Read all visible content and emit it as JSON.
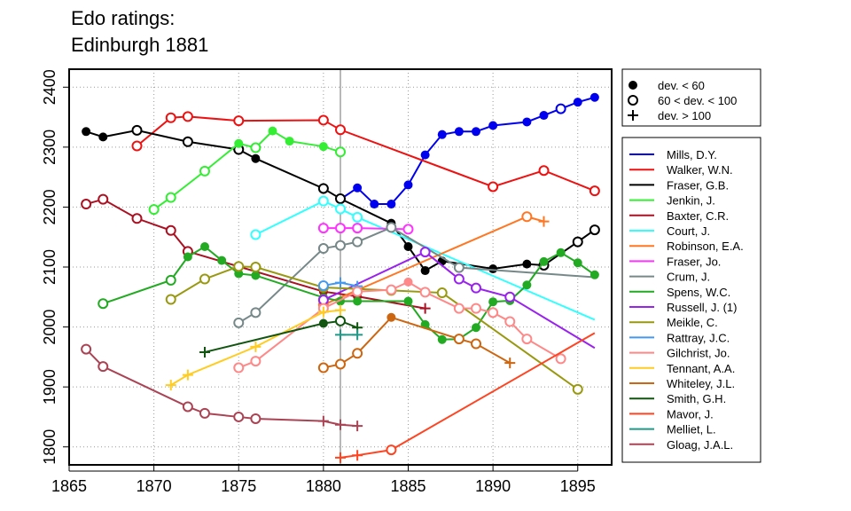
{
  "chart_data": {
    "type": "line",
    "title_lines": [
      "Edo ratings:",
      "Edinburgh 1881"
    ],
    "xlabel": "",
    "ylabel": "",
    "xlim": [
      1865,
      1897
    ],
    "ylim": [
      1770,
      2430
    ],
    "x_ticks": [
      1865,
      1870,
      1875,
      1880,
      1885,
      1890,
      1895
    ],
    "y_ticks": [
      1800,
      1900,
      2000,
      2100,
      2200,
      2300,
      2400
    ],
    "grid": "dotted",
    "vertical_marker_x": 1881,
    "marker_legend": [
      {
        "symbol": "filled-circle",
        "label": "dev. < 60"
      },
      {
        "symbol": "open-circle",
        "label": "60 < dev. < 100"
      },
      {
        "symbol": "plus",
        "label": "dev. > 100"
      }
    ],
    "series": [
      {
        "name": "Mills, D.Y.",
        "color": "#0000ee",
        "points": [
          [
            1881,
            2213,
            "f"
          ],
          [
            1882,
            2232,
            "f"
          ],
          [
            1883,
            2205,
            "f"
          ],
          [
            1884,
            2205,
            "f"
          ],
          [
            1885,
            2237,
            "f"
          ],
          [
            1886,
            2287,
            "f"
          ],
          [
            1887,
            2321,
            "f"
          ],
          [
            1888,
            2326,
            "f"
          ],
          [
            1889,
            2326,
            "f"
          ],
          [
            1890,
            2336,
            "f"
          ],
          [
            1892,
            2342,
            "f"
          ],
          [
            1893,
            2353,
            "f"
          ],
          [
            1894,
            2364,
            "o"
          ],
          [
            1895,
            2375,
            "f"
          ],
          [
            1896,
            2383,
            "f"
          ]
        ]
      },
      {
        "name": "Walker, W.N.",
        "color": "#ee1111",
        "points": [
          [
            1869,
            2302,
            "o"
          ],
          [
            1871,
            2349,
            "o"
          ],
          [
            1872,
            2351,
            "o"
          ],
          [
            1875,
            2344,
            "o"
          ],
          [
            1880,
            2345,
            "o"
          ],
          [
            1881,
            2329,
            "o"
          ],
          [
            1890,
            2234,
            "o"
          ],
          [
            1893,
            2261,
            "o"
          ],
          [
            1896,
            2227,
            "o"
          ]
        ]
      },
      {
        "name": "Fraser, G.B.",
        "color": "#000000",
        "points": [
          [
            1866,
            2326,
            "f"
          ],
          [
            1867,
            2317,
            "f"
          ],
          [
            1869,
            2328,
            "o"
          ],
          [
            1872,
            2309,
            "o"
          ],
          [
            1875,
            2296,
            "o"
          ],
          [
            1876,
            2281,
            "f"
          ],
          [
            1880,
            2231,
            "o"
          ],
          [
            1881,
            2214,
            "o"
          ],
          [
            1884,
            2173,
            "f"
          ],
          [
            1885,
            2134,
            "f"
          ],
          [
            1886,
            2094,
            "f"
          ],
          [
            1887,
            2110,
            "f"
          ],
          [
            1890,
            2097,
            "f"
          ],
          [
            1892,
            2105,
            "f"
          ],
          [
            1893,
            2103,
            "o"
          ],
          [
            1895,
            2142,
            "o"
          ],
          [
            1896,
            2162,
            "o"
          ]
        ]
      },
      {
        "name": "Jenkin, J.",
        "color": "#33ee33",
        "points": [
          [
            1870,
            2196,
            "o"
          ],
          [
            1871,
            2216,
            "o"
          ],
          [
            1873,
            2260,
            "o"
          ],
          [
            1875,
            2306,
            "f"
          ],
          [
            1876,
            2299,
            "o"
          ],
          [
            1877,
            2327,
            "f"
          ],
          [
            1878,
            2310,
            "f"
          ],
          [
            1880,
            2301,
            "f"
          ],
          [
            1881,
            2292,
            "o"
          ]
        ]
      },
      {
        "name": "Baxter, C.R.",
        "color": "#aa1122",
        "points": [
          [
            1866,
            2205,
            "o"
          ],
          [
            1867,
            2213,
            "o"
          ],
          [
            1869,
            2181,
            "o"
          ],
          [
            1871,
            2161,
            "o"
          ],
          [
            1872,
            2126,
            "o"
          ],
          [
            1880,
            2059,
            "f"
          ],
          [
            1882,
            2051,
            "f"
          ],
          [
            1886,
            2031,
            "+"
          ]
        ]
      },
      {
        "name": "Court, J.",
        "color": "#33ffff",
        "points": [
          [
            1876,
            2154,
            "o"
          ],
          [
            1880,
            2210,
            "o"
          ],
          [
            1881,
            2197,
            "o"
          ],
          [
            1882,
            2183,
            "o"
          ],
          [
            1896,
            2012,
            "none"
          ]
        ]
      },
      {
        "name": "Robinson, E.A.",
        "color": "#ff7722",
        "points": [
          [
            1880,
            2037,
            "o"
          ],
          [
            1892,
            2184,
            "o"
          ],
          [
            1893,
            2176,
            "+"
          ]
        ]
      },
      {
        "name": "Fraser, Jo.",
        "color": "#ff33ff",
        "points": [
          [
            1880,
            2165,
            "o"
          ],
          [
            1881,
            2165,
            "o"
          ],
          [
            1882,
            2165,
            "o"
          ],
          [
            1885,
            2163,
            "o"
          ]
        ]
      },
      {
        "name": "Crum, J.",
        "color": "#778888",
        "points": [
          [
            1875,
            2007,
            "o"
          ],
          [
            1876,
            2024,
            "o"
          ],
          [
            1880,
            2131,
            "o"
          ],
          [
            1881,
            2136,
            "o"
          ],
          [
            1882,
            2142,
            "o"
          ],
          [
            1884,
            2166,
            "o"
          ],
          [
            1888,
            2099,
            "o"
          ],
          [
            1896,
            2083,
            "none"
          ]
        ]
      },
      {
        "name": "Spens, W.C.",
        "color": "#22aa22",
        "points": [
          [
            1867,
            2039,
            "o"
          ],
          [
            1871,
            2078,
            "o"
          ],
          [
            1872,
            2117,
            "f"
          ],
          [
            1873,
            2134,
            "f"
          ],
          [
            1874,
            2111,
            "f"
          ],
          [
            1875,
            2089,
            "f"
          ],
          [
            1876,
            2086,
            "f"
          ],
          [
            1880,
            2049,
            "f"
          ],
          [
            1881,
            2043,
            "f"
          ],
          [
            1882,
            2043,
            "f"
          ],
          [
            1885,
            2043,
            "f"
          ],
          [
            1886,
            2004,
            "f"
          ],
          [
            1887,
            1979,
            "f"
          ],
          [
            1888,
            1980,
            "f"
          ],
          [
            1889,
            1999,
            "f"
          ],
          [
            1890,
            2042,
            "f"
          ],
          [
            1891,
            2044,
            "f"
          ],
          [
            1892,
            2070,
            "f"
          ],
          [
            1893,
            2109,
            "f"
          ],
          [
            1894,
            2124,
            "f"
          ],
          [
            1895,
            2107,
            "f"
          ],
          [
            1896,
            2087,
            "f"
          ]
        ]
      },
      {
        "name": "Russell, J. (1)",
        "color": "#9922ee",
        "points": [
          [
            1880,
            2045,
            "o"
          ],
          [
            1886,
            2125,
            "o"
          ],
          [
            1888,
            2080,
            "o"
          ],
          [
            1889,
            2065,
            "o"
          ],
          [
            1891,
            2050,
            "o"
          ],
          [
            1896,
            1965,
            "none"
          ]
        ]
      },
      {
        "name": "Meikle, C.",
        "color": "#999911",
        "points": [
          [
            1871,
            2046,
            "o"
          ],
          [
            1873,
            2080,
            "o"
          ],
          [
            1875,
            2101,
            "o"
          ],
          [
            1876,
            2100,
            "o"
          ],
          [
            1880,
            2066,
            "o"
          ],
          [
            1884,
            2061,
            "o"
          ],
          [
            1887,
            2057,
            "o"
          ],
          [
            1895,
            1896,
            "o"
          ]
        ]
      },
      {
        "name": "Rattray, J.C.",
        "color": "#4499ee",
        "points": [
          [
            1880,
            2069,
            "o"
          ],
          [
            1881,
            2074,
            "+"
          ],
          [
            1882,
            2068,
            "+"
          ]
        ]
      },
      {
        "name": "Gilchrist, Jo.",
        "color": "#ff8888",
        "points": [
          [
            1875,
            1932,
            "o"
          ],
          [
            1876,
            1943,
            "o"
          ],
          [
            1880,
            2031,
            "o"
          ],
          [
            1882,
            2059,
            "o"
          ],
          [
            1884,
            2062,
            "o"
          ],
          [
            1885,
            2075,
            "f"
          ],
          [
            1886,
            2058,
            "o"
          ],
          [
            1888,
            2031,
            "o"
          ],
          [
            1889,
            2031,
            "o"
          ],
          [
            1890,
            2024,
            "o"
          ],
          [
            1891,
            2009,
            "o"
          ],
          [
            1892,
            1980,
            "o"
          ],
          [
            1894,
            1947,
            "o"
          ]
        ]
      },
      {
        "name": "Tennant, A.A.",
        "color": "#ffcc22",
        "points": [
          [
            1871,
            1903,
            "+"
          ],
          [
            1872,
            1920,
            "+"
          ],
          [
            1876,
            1967,
            "+"
          ],
          [
            1880,
            2025,
            "+"
          ],
          [
            1881,
            2028,
            "+"
          ]
        ]
      },
      {
        "name": "Whiteley, J.L.",
        "color": "#cc6611",
        "points": [
          [
            1880,
            1932,
            "o"
          ],
          [
            1881,
            1938,
            "o"
          ],
          [
            1882,
            1956,
            "o"
          ],
          [
            1884,
            2016,
            "f"
          ],
          [
            1888,
            1980,
            "o"
          ],
          [
            1889,
            1972,
            "o"
          ],
          [
            1891,
            1940,
            "+"
          ]
        ]
      },
      {
        "name": "Smith, G.H.",
        "color": "#115511",
        "points": [
          [
            1873,
            1958,
            "+"
          ],
          [
            1880,
            2006,
            "f"
          ],
          [
            1881,
            2010,
            "o"
          ],
          [
            1882,
            1999,
            "+"
          ]
        ]
      },
      {
        "name": "Mavor, J.",
        "color": "#ff4422",
        "points": [
          [
            1881,
            1782,
            "+"
          ],
          [
            1882,
            1786,
            "+"
          ],
          [
            1884,
            1795,
            "o"
          ],
          [
            1896,
            1990,
            "none"
          ]
        ]
      },
      {
        "name": "Melliet, L.",
        "color": "#229988",
        "points": [
          [
            1881,
            1987,
            "+"
          ],
          [
            1882,
            1987,
            "+"
          ]
        ]
      },
      {
        "name": "Gloag, J.A.L.",
        "color": "#aa4455",
        "points": [
          [
            1866,
            1963,
            "o"
          ],
          [
            1867,
            1934,
            "o"
          ],
          [
            1872,
            1867,
            "o"
          ],
          [
            1873,
            1856,
            "o"
          ],
          [
            1875,
            1850,
            "o"
          ],
          [
            1876,
            1847,
            "o"
          ],
          [
            1880,
            1843,
            "+"
          ],
          [
            1881,
            1837,
            "+"
          ],
          [
            1882,
            1835,
            "+"
          ]
        ]
      }
    ]
  }
}
